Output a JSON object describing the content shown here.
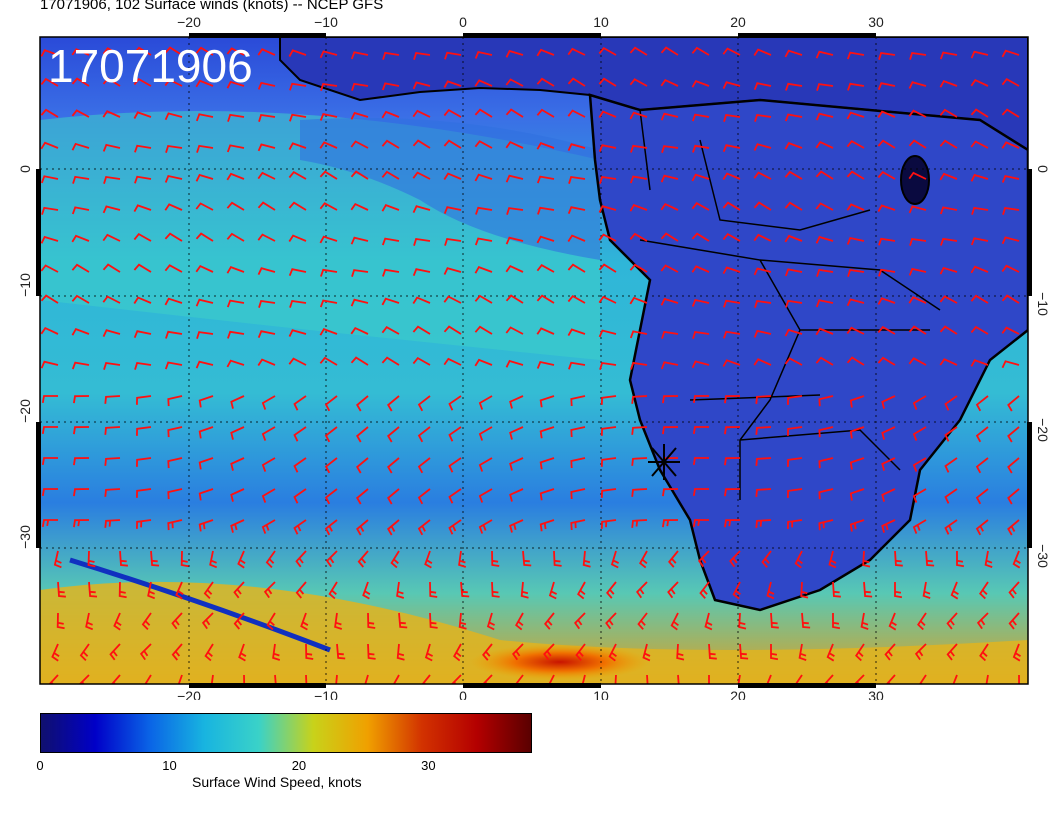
{
  "title": "17071906, 102 Surface winds (knots) -- NCEP GFS",
  "stamp": "17071906",
  "map": {
    "lon_range": [
      -30,
      40
    ],
    "lat_range": [
      -40,
      10
    ],
    "lon_ticks": [
      "−20",
      "−10",
      "0",
      "10",
      "20",
      "30"
    ],
    "lat_ticks": [
      "0",
      "−10",
      "−20",
      "−30"
    ],
    "grid": true,
    "barb_color": "#ff1010",
    "marker": {
      "lon": 14.5,
      "lat": -23,
      "symbol": "asterisk"
    }
  },
  "colorbar": {
    "label": "Surface Wind Speed, knots",
    "ticks": [
      "0",
      "10",
      "20",
      "30"
    ],
    "tick_values": [
      0,
      10,
      20,
      30
    ],
    "range": [
      0,
      38
    ],
    "colors": [
      "#10106e",
      "#0000c8",
      "#0a64e6",
      "#18b4e0",
      "#3ad2c8",
      "#c8d21a",
      "#f0a000",
      "#d23200",
      "#b40000",
      "#5a0000"
    ]
  }
}
